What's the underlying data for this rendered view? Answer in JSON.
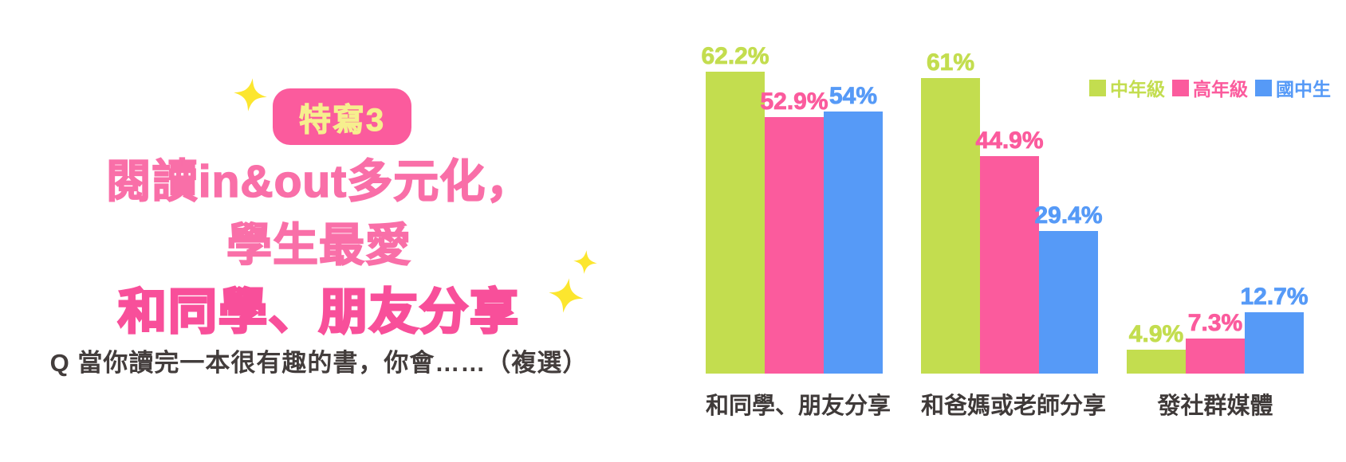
{
  "colors": {
    "green": "#c3dd4f",
    "pink": "#fb5b9d",
    "blue": "#569af7",
    "title_pink": "#f96fa8",
    "title_bold_pink": "#f84f9a",
    "badge_bg": "#fb5b9d",
    "badge_text": "#f6ef8e",
    "sparkle_yellow": "#fce62e",
    "question_text": "#433d3c",
    "category_text": "#3f3a39"
  },
  "header": {
    "badge_label": "特寫3",
    "title_lines": {
      "0": "閱讀in&out多元化，",
      "1": "學生最愛",
      "2": "和同學、朋友分享"
    },
    "question": "Q 當你讀完一本很有趣的書，你會……（複選）"
  },
  "chart_data": {
    "type": "bar",
    "title": "",
    "xlabel": "",
    "ylabel": "",
    "unit": "%",
    "ylim": [
      0,
      65
    ],
    "grid": false,
    "axes_visible": false,
    "legend_position": "top-right",
    "categories": [
      "和同學、朋友分享",
      "和爸媽或老師分享",
      "發社群媒體"
    ],
    "series": [
      {
        "name": "中年級",
        "color": "#c3dd4f",
        "values": [
          62.2,
          61,
          4.9
        ]
      },
      {
        "name": "高年級",
        "color": "#fb5b9d",
        "values": [
          52.9,
          44.9,
          7.3
        ]
      },
      {
        "name": "國中生",
        "color": "#569af7",
        "values": [
          54,
          29.4,
          12.7
        ]
      }
    ]
  }
}
